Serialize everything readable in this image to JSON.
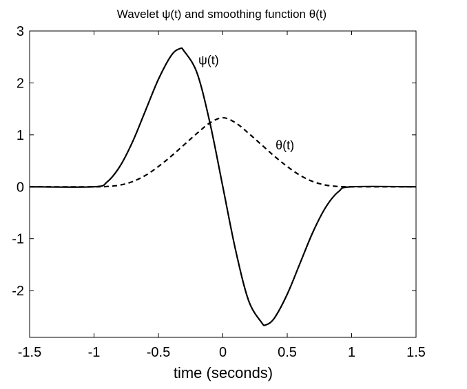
{
  "chart_data": {
    "type": "line",
    "title": "Wavelet ψ(t) and smoothing function θ(t)",
    "xlabel": "time (seconds)",
    "ylabel": "",
    "xlim": [
      -1.5,
      1.5
    ],
    "ylim": [
      -2.9,
      3
    ],
    "xticks": [
      -1.5,
      -1,
      -0.5,
      0,
      0.5,
      1,
      1.5
    ],
    "xtick_labels": [
      "-1.5",
      "-1",
      "-0.5",
      "0",
      "0.5",
      "1",
      "1.5"
    ],
    "yticks": [
      -2,
      -1,
      0,
      1,
      2,
      3
    ],
    "ytick_labels": [
      "-2",
      "-1",
      "0",
      "1",
      "2",
      "3"
    ],
    "grid": false,
    "legend": "none",
    "series": [
      {
        "name": "ψ(t)",
        "style": "solid",
        "color": "#000000",
        "x": [
          -1.5,
          -1.0,
          -0.9,
          -0.8,
          -0.7,
          -0.6,
          -0.5,
          -0.4,
          -0.333,
          -0.3,
          -0.2,
          -0.1,
          0.0,
          0.1,
          0.2,
          0.3,
          0.333,
          0.4,
          0.5,
          0.6,
          0.7,
          0.8,
          0.9,
          1.0,
          1.5
        ],
        "y": [
          0,
          0,
          0.09,
          0.39,
          0.87,
          1.47,
          2.07,
          2.53,
          2.66,
          2.61,
          2.19,
          1.23,
          0,
          -1.23,
          -2.19,
          -2.61,
          -2.66,
          -2.53,
          -2.07,
          -1.47,
          -0.87,
          -0.39,
          -0.09,
          0,
          0
        ]
      },
      {
        "name": "θ(t)",
        "style": "dashed",
        "color": "#000000",
        "x": [
          -1.5,
          -1.0,
          -0.9,
          -0.8,
          -0.7,
          -0.6,
          -0.5,
          -0.4,
          -0.3,
          -0.2,
          -0.1,
          0.0,
          0.1,
          0.2,
          0.3,
          0.4,
          0.5,
          0.6,
          0.7,
          0.8,
          0.9,
          1.0,
          1.5
        ],
        "y": [
          0,
          0,
          0.005,
          0.032,
          0.1,
          0.22,
          0.39,
          0.59,
          0.81,
          1.03,
          1.23,
          1.33,
          1.23,
          1.03,
          0.81,
          0.59,
          0.39,
          0.22,
          0.1,
          0.032,
          0.005,
          0,
          0
        ]
      }
    ],
    "annotations": [
      {
        "text": "ψ(t)",
        "x": -0.19,
        "y": 2.36
      },
      {
        "text": "θ(t)",
        "x": 0.41,
        "y": 0.72
      }
    ]
  }
}
